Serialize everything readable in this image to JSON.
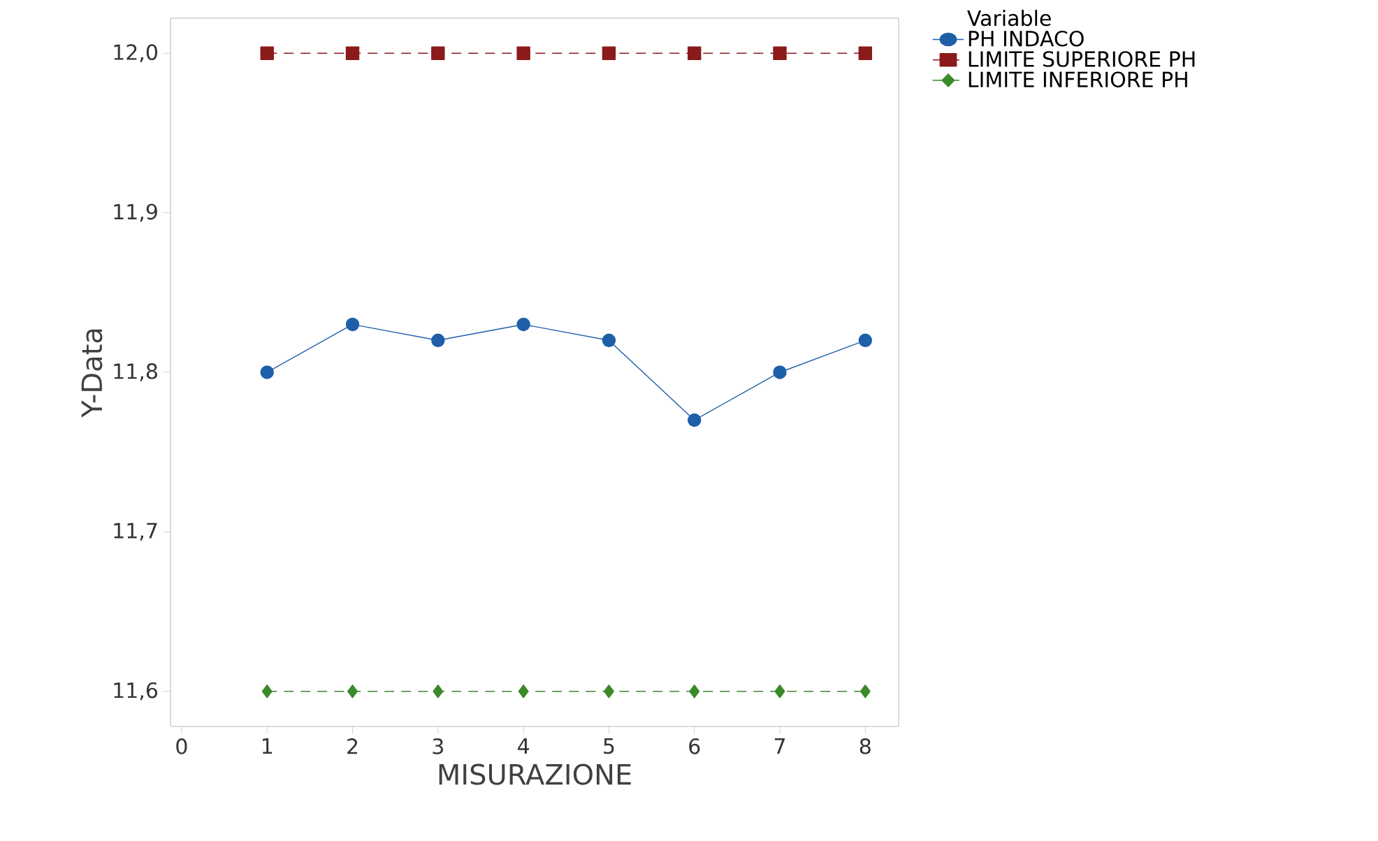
{
  "chart_data": {
    "type": "line",
    "xlabel": "MISURAZIONE",
    "ylabel": "Y-Data",
    "legend_title": "Variable",
    "legend": "top right",
    "x": [
      1,
      2,
      3,
      4,
      5,
      6,
      7,
      8
    ],
    "xlim": [
      -0.13,
      8.39
    ],
    "xticks": [
      0,
      1,
      2,
      3,
      4,
      5,
      6,
      7,
      8
    ],
    "ylim": [
      11.578,
      12.022
    ],
    "yticks": [
      {
        "value": 11.6,
        "label": "11,6"
      },
      {
        "value": 11.7,
        "label": "11,7"
      },
      {
        "value": 11.8,
        "label": "11,8"
      },
      {
        "value": 11.9,
        "label": "11,9"
      },
      {
        "value": 12.0,
        "label": "12,0"
      }
    ],
    "series": [
      {
        "name": "PH INDACO",
        "color": "#1f5fa8",
        "marker": "circle",
        "line_style": "solid",
        "values": [
          11.8,
          11.83,
          11.82,
          11.83,
          11.82,
          11.77,
          11.8,
          11.82
        ]
      },
      {
        "name": "LIMITE SUPERIORE PH",
        "color": "#8b1a1a",
        "marker": "square",
        "line_style": "dashed",
        "values": [
          12.0,
          12.0,
          12.0,
          12.0,
          12.0,
          12.0,
          12.0,
          12.0
        ]
      },
      {
        "name": "LIMITE INFERIORE PH",
        "color": "#3a8a2a",
        "marker": "diamond",
        "line_style": "dashed",
        "values": [
          11.6,
          11.6,
          11.6,
          11.6,
          11.6,
          11.6,
          11.6,
          11.6
        ]
      }
    ]
  }
}
